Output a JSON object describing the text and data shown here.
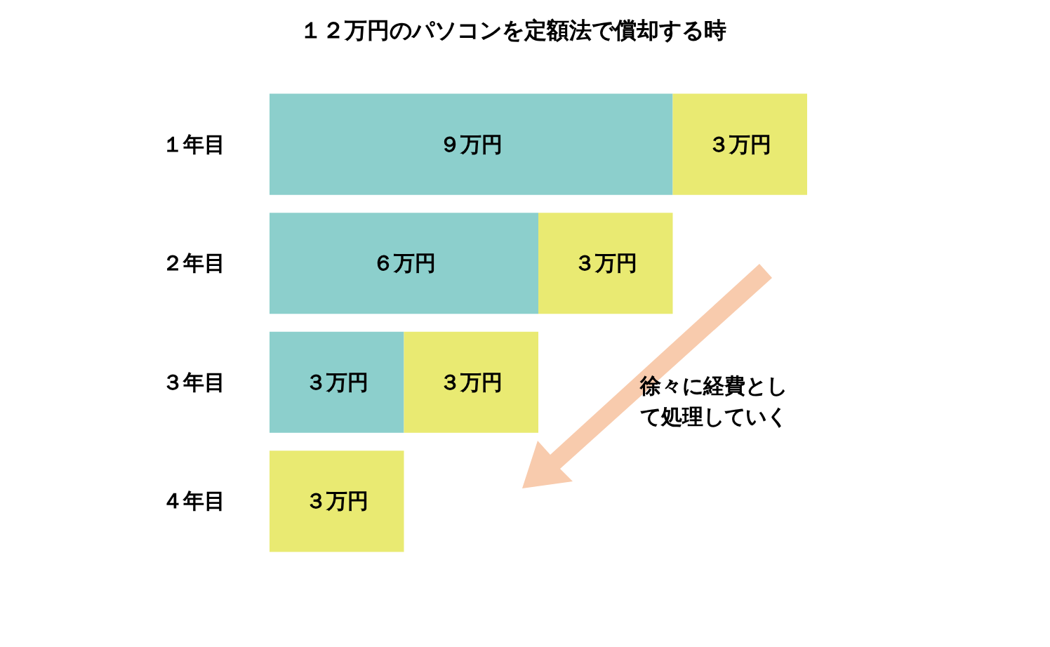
{
  "chart_data": {
    "type": "bar",
    "orientation": "horizontal",
    "stacked": true,
    "title": "１２万円のパソコンを定額法で償却する時",
    "categories": [
      "１年目",
      "２年目",
      "３年目",
      "４年目"
    ],
    "series": [
      {
        "color": "#8ccfcc",
        "values": [
          9,
          6,
          3,
          null
        ],
        "value_labels": [
          "９万円",
          "６万円",
          "３万円",
          null
        ]
      },
      {
        "color": "#e9ea72",
        "values": [
          3,
          3,
          3,
          3
        ],
        "value_labels": [
          "３万円",
          "３万円",
          "３万円",
          "３万円"
        ]
      }
    ],
    "annotations": [
      "徐々に経費として処理していく"
    ],
    "legend": false
  }
}
